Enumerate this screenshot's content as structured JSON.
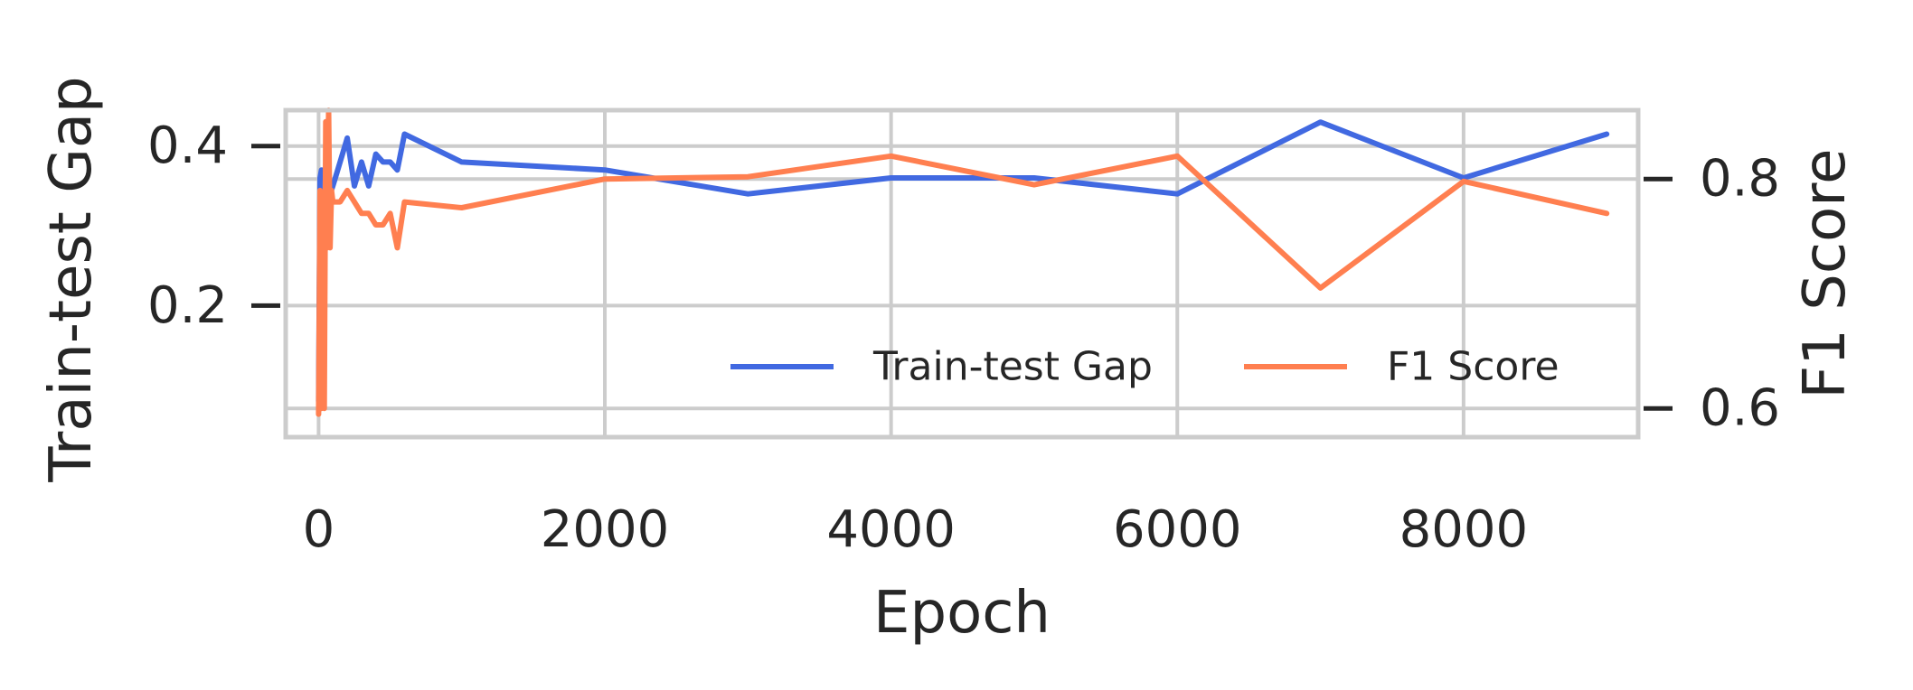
{
  "chart_data": {
    "type": "line",
    "xlabel": "Epoch",
    "ylabel_left": "Train-test Gap",
    "ylabel_right": "F1 Score",
    "xlim": [
      -230,
      9220
    ],
    "ylim_left": [
      0.035,
      0.445
    ],
    "ylim_right": [
      0.575,
      0.86
    ],
    "x_ticks": [
      0,
      2000,
      4000,
      6000,
      8000
    ],
    "x_tick_labels": [
      "0",
      "2000",
      "4000",
      "6000",
      "8000"
    ],
    "y_left_ticks": [
      0.2,
      0.4
    ],
    "y_left_tick_labels": [
      "0.2",
      "0.4"
    ],
    "y_right_ticks": [
      0.6,
      0.8
    ],
    "y_right_tick_labels": [
      "0.6",
      "0.8"
    ],
    "grid": true,
    "legend": {
      "placement": "lower right",
      "columns": 2
    },
    "series": [
      {
        "name": "Train-test Gap",
        "axis": "left",
        "color": "#4169E1",
        "x": [
          0,
          10,
          20,
          40,
          60,
          80,
          100,
          150,
          200,
          250,
          300,
          350,
          400,
          450,
          500,
          550,
          600,
          1000,
          2000,
          3000,
          4000,
          5000,
          6000,
          7000,
          8000,
          9000
        ],
        "y": [
          0.08,
          0.36,
          0.37,
          0.36,
          0.38,
          0.34,
          0.35,
          0.38,
          0.41,
          0.35,
          0.38,
          0.35,
          0.39,
          0.38,
          0.38,
          0.37,
          0.415,
          0.38,
          0.37,
          0.34,
          0.36,
          0.36,
          0.34,
          0.43,
          0.36,
          0.415
        ]
      },
      {
        "name": "F1 Score",
        "axis": "right",
        "color": "#FF7F50",
        "x": [
          0,
          10,
          20,
          30,
          40,
          50,
          60,
          70,
          80,
          90,
          100,
          150,
          200,
          250,
          300,
          350,
          400,
          450,
          500,
          550,
          600,
          1000,
          2000,
          3000,
          4000,
          5000,
          6000,
          7000,
          8000,
          9000
        ],
        "y": [
          0.595,
          0.79,
          0.6,
          0.77,
          0.6,
          0.85,
          0.74,
          0.86,
          0.74,
          0.79,
          0.78,
          0.78,
          0.79,
          0.78,
          0.77,
          0.77,
          0.76,
          0.76,
          0.77,
          0.74,
          0.78,
          0.775,
          0.8,
          0.802,
          0.82,
          0.795,
          0.82,
          0.705,
          0.798,
          0.77
        ]
      }
    ]
  }
}
